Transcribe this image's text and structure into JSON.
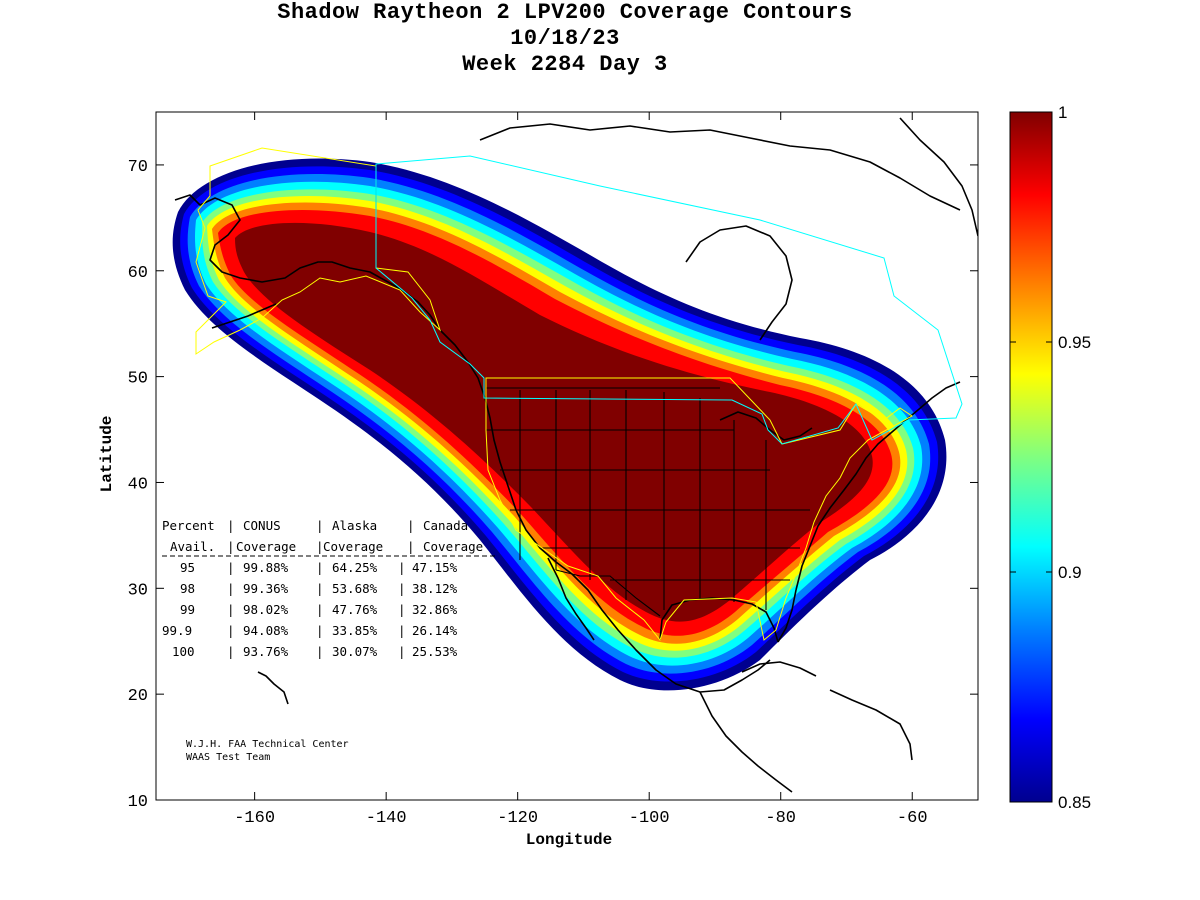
{
  "title": {
    "line1": "Shadow Raytheon 2 LPV200 Coverage Contours",
    "line2": "10/18/23",
    "line3": "Week 2284 Day 3"
  },
  "axes": {
    "xlabel": "Longitude",
    "ylabel": "Latitude",
    "xlim": [
      -175,
      -50
    ],
    "ylim": [
      10,
      75
    ],
    "xticks": [
      "-160",
      "-140",
      "-120",
      "-100",
      "-80",
      "-60"
    ],
    "xtick_values": [
      -160,
      -140,
      -120,
      -100,
      -80,
      -60
    ],
    "yticks": [
      "10",
      "20",
      "30",
      "40",
      "50",
      "60",
      "70"
    ],
    "ytick_values": [
      10,
      20,
      30,
      40,
      50,
      60,
      70
    ]
  },
  "colorbar": {
    "range": [
      0.85,
      1
    ],
    "ticks": [
      "1",
      "0.95",
      "0.9",
      "0.85"
    ],
    "tick_values": [
      1,
      0.95,
      0.9,
      0.85
    ],
    "colors": [
      "#00008f",
      "#0000ff",
      "#0080ff",
      "#00ffff",
      "#80ff80",
      "#ffff00",
      "#ff8000",
      "#ff0000",
      "#800000"
    ]
  },
  "stats_table": {
    "header1": [
      "Percent",
      "CONUS",
      "Alaska",
      "Canada"
    ],
    "header2": [
      "Avail.",
      "Coverage",
      "Coverage",
      "Coverage"
    ],
    "rows": [
      {
        "pct": "95",
        "conus": "99.88%",
        "alaska": "64.25%",
        "canada": "47.15%"
      },
      {
        "pct": "98",
        "conus": "99.36%",
        "alaska": "53.68%",
        "canada": "38.12%"
      },
      {
        "pct": "99",
        "conus": "98.02%",
        "alaska": "47.76%",
        "canada": "32.86%"
      },
      {
        "pct": "99.9",
        "conus": "94.08%",
        "alaska": "33.85%",
        "canada": "26.14%"
      },
      {
        "pct": "100",
        "conus": "93.76%",
        "alaska": "30.07%",
        "canada": "25.53%"
      }
    ]
  },
  "credit": {
    "line1": "W.J.H. FAA Technical Center",
    "line2": "WAAS Test Team"
  },
  "map_colors": {
    "conus_boundary": "#ffff00",
    "canada_boundary": "#00ffff",
    "coastline": "#000000"
  }
}
